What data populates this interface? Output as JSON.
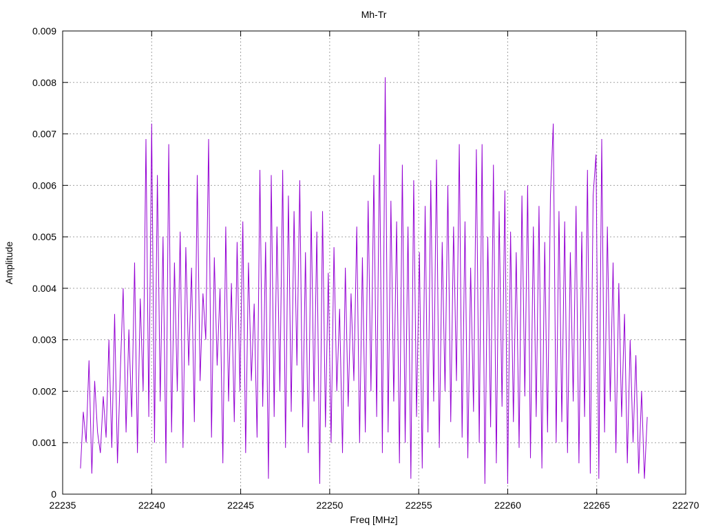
{
  "chart_data": {
    "type": "line",
    "title": "Mh-Tr",
    "xlabel": "Freq [MHz]",
    "ylabel": "Amplitude",
    "xlim": [
      22235,
      22270
    ],
    "ylim": [
      0,
      0.009
    ],
    "xticks": [
      22235,
      22240,
      22245,
      22250,
      22255,
      22260,
      22265,
      22270
    ],
    "xtick_labels": [
      "22235",
      "22240",
      "22245",
      "22250",
      "22255",
      "22260",
      "22265",
      "22270"
    ],
    "yticks": [
      0,
      0.001,
      0.002,
      0.003,
      0.004,
      0.005,
      0.006,
      0.007,
      0.008,
      0.009
    ],
    "ytick_labels": [
      "0",
      "0.001",
      "0.002",
      "0.003",
      "0.004",
      "0.005",
      "0.006",
      "0.007",
      "0.008",
      "0.009"
    ],
    "grid": true,
    "legend": "none",
    "series": [
      {
        "name": "Mh-Tr",
        "color": "#9400d3",
        "x_start": 22236,
        "x_step": 0.16,
        "values": [
          0.0005,
          0.0016,
          0.001,
          0.0026,
          0.0004,
          0.0022,
          0.0012,
          0.0008,
          0.0019,
          0.0011,
          0.003,
          0.0009,
          0.0035,
          0.0006,
          0.0024,
          0.004,
          0.0012,
          0.0032,
          0.0015,
          0.0045,
          0.0008,
          0.0038,
          0.002,
          0.0069,
          0.0015,
          0.0072,
          0.001,
          0.0062,
          0.0018,
          0.005,
          0.0006,
          0.0068,
          0.0012,
          0.0045,
          0.002,
          0.0051,
          0.0009,
          0.0048,
          0.0025,
          0.0044,
          0.0014,
          0.0062,
          0.0022,
          0.0039,
          0.003,
          0.0069,
          0.0011,
          0.0046,
          0.0025,
          0.004,
          0.0006,
          0.0052,
          0.0018,
          0.0041,
          0.0014,
          0.0049,
          0.002,
          0.0053,
          0.0008,
          0.0045,
          0.0022,
          0.0037,
          0.0011,
          0.0063,
          0.0017,
          0.0049,
          0.0003,
          0.0062,
          0.0015,
          0.0052,
          0.002,
          0.0063,
          0.0009,
          0.0058,
          0.0016,
          0.0055,
          0.0025,
          0.0061,
          0.0013,
          0.0047,
          0.0008,
          0.0055,
          0.0018,
          0.0051,
          0.0002,
          0.0055,
          0.0013,
          0.0043,
          0.001,
          0.0048,
          0.002,
          0.0036,
          0.0008,
          0.0044,
          0.0017,
          0.0039,
          0.0022,
          0.0052,
          0.001,
          0.0046,
          0.0012,
          0.0057,
          0.002,
          0.0062,
          0.0015,
          0.0068,
          0.0008,
          0.0081,
          0.0012,
          0.0057,
          0.0018,
          0.0053,
          0.0006,
          0.0064,
          0.001,
          0.0052,
          0.0003,
          0.0061,
          0.0015,
          0.0047,
          0.0005,
          0.0056,
          0.0012,
          0.0061,
          0.0018,
          0.0065,
          0.0009,
          0.0049,
          0.002,
          0.006,
          0.0014,
          0.0052,
          0.0022,
          0.0068,
          0.0011,
          0.0053,
          0.0007,
          0.0044,
          0.0016,
          0.0067,
          0.001,
          0.0068,
          0.0002,
          0.005,
          0.0013,
          0.0064,
          0.0006,
          0.0055,
          0.0017,
          0.0059,
          0.0002,
          0.0051,
          0.0014,
          0.0047,
          0.0009,
          0.0058,
          0.0019,
          0.006,
          0.0007,
          0.0052,
          0.0015,
          0.0056,
          0.0005,
          0.0049,
          0.0012,
          0.0058,
          0.0072,
          0.001,
          0.0055,
          0.0014,
          0.0053,
          0.0008,
          0.0047,
          0.0018,
          0.0056,
          0.0006,
          0.0051,
          0.0015,
          0.0063,
          0.0004,
          0.0058,
          0.0066,
          0.0003,
          0.0069,
          0.0012,
          0.0052,
          0.0018,
          0.0045,
          0.0008,
          0.0041,
          0.0015,
          0.0035,
          0.0006,
          0.003,
          0.001,
          0.0027,
          0.0004,
          0.002,
          0.0003,
          0.0015
        ]
      }
    ]
  }
}
